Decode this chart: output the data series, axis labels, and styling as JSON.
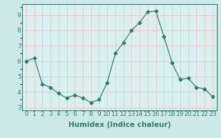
{
  "x": [
    0,
    1,
    2,
    3,
    4,
    5,
    6,
    7,
    8,
    9,
    10,
    11,
    12,
    13,
    14,
    15,
    16,
    17,
    18,
    19,
    20,
    21,
    22,
    23
  ],
  "y": [
    6.0,
    6.2,
    4.5,
    4.3,
    3.9,
    3.6,
    3.8,
    3.6,
    3.3,
    3.5,
    4.6,
    6.5,
    7.2,
    8.0,
    8.5,
    9.2,
    9.25,
    7.6,
    5.9,
    4.8,
    4.9,
    4.3,
    4.2,
    3.7
  ],
  "line_color": "#2e7d6e",
  "marker": "D",
  "marker_size": 2.5,
  "bg_color": "#cce8e8",
  "plot_bg_color": "#d9f0f0",
  "grid_color_major": "#e8c8c8",
  "grid_color_minor": "#ddeaea",
  "xlabel": "Humidex (Indice chaleur)",
  "xlabel_fontsize": 7.5,
  "ylim": [
    2.8,
    9.7
  ],
  "xlim": [
    -0.5,
    23.5
  ],
  "yticks": [
    3,
    4,
    5,
    6,
    7,
    8,
    9
  ],
  "xticks": [
    0,
    1,
    2,
    3,
    4,
    5,
    6,
    7,
    8,
    9,
    10,
    11,
    12,
    13,
    14,
    15,
    16,
    17,
    18,
    19,
    20,
    21,
    22,
    23
  ],
  "tick_fontsize": 6.5,
  "spine_color": "#2e7d6e",
  "axis_label_color": "#2e7d6e"
}
